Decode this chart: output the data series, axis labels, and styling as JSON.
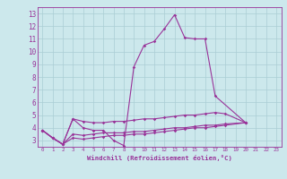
{
  "xlabel": "Windchill (Refroidissement éolien,°C)",
  "bg_color": "#cce8ec",
  "line_color": "#993399",
  "grid_color": "#aacdd4",
  "main_x": [
    0,
    1,
    2,
    3,
    4,
    5,
    6,
    7,
    8,
    9,
    10,
    11,
    12,
    13,
    14,
    15,
    16,
    17,
    20
  ],
  "main_y": [
    3.8,
    3.2,
    2.7,
    4.7,
    4.0,
    3.8,
    3.8,
    3.0,
    2.6,
    8.8,
    10.5,
    10.8,
    11.8,
    12.9,
    11.1,
    11.0,
    11.0,
    6.5,
    4.4
  ],
  "up_x": [
    0,
    1,
    2,
    3,
    4,
    5,
    6,
    7,
    8,
    9,
    10,
    11,
    12,
    13,
    14,
    15,
    16,
    17,
    18,
    20
  ],
  "up_y": [
    3.8,
    3.2,
    2.7,
    4.7,
    4.5,
    4.4,
    4.4,
    4.5,
    4.5,
    4.6,
    4.7,
    4.7,
    4.8,
    4.9,
    5.0,
    5.0,
    5.1,
    5.2,
    5.1,
    4.4
  ],
  "mid_x": [
    0,
    1,
    2,
    3,
    4,
    5,
    6,
    7,
    8,
    9,
    10,
    11,
    12,
    13,
    14,
    15,
    16,
    17,
    18,
    20
  ],
  "mid_y": [
    3.8,
    3.2,
    2.7,
    3.5,
    3.4,
    3.5,
    3.6,
    3.6,
    3.6,
    3.7,
    3.7,
    3.8,
    3.9,
    4.0,
    4.0,
    4.1,
    4.2,
    4.2,
    4.3,
    4.4
  ],
  "low_x": [
    0,
    1,
    2,
    3,
    4,
    5,
    6,
    7,
    8,
    9,
    10,
    11,
    12,
    13,
    14,
    15,
    16,
    17,
    18,
    20
  ],
  "low_y": [
    3.8,
    3.2,
    2.7,
    3.2,
    3.1,
    3.2,
    3.3,
    3.4,
    3.4,
    3.5,
    3.5,
    3.6,
    3.7,
    3.8,
    3.9,
    4.0,
    4.0,
    4.1,
    4.2,
    4.4
  ],
  "xlim": [
    -0.5,
    23.5
  ],
  "ylim": [
    2.5,
    13.5
  ],
  "yticks": [
    3,
    4,
    5,
    6,
    7,
    8,
    9,
    10,
    11,
    12,
    13
  ],
  "xticks": [
    0,
    1,
    2,
    3,
    4,
    5,
    6,
    7,
    8,
    9,
    10,
    11,
    12,
    13,
    14,
    15,
    16,
    17,
    18,
    19,
    20,
    21,
    22,
    23
  ],
  "tick_fontsize_x": 4.2,
  "tick_fontsize_y": 5.5,
  "xlabel_fontsize": 5.2,
  "lw": 0.8,
  "ms": 1.8
}
